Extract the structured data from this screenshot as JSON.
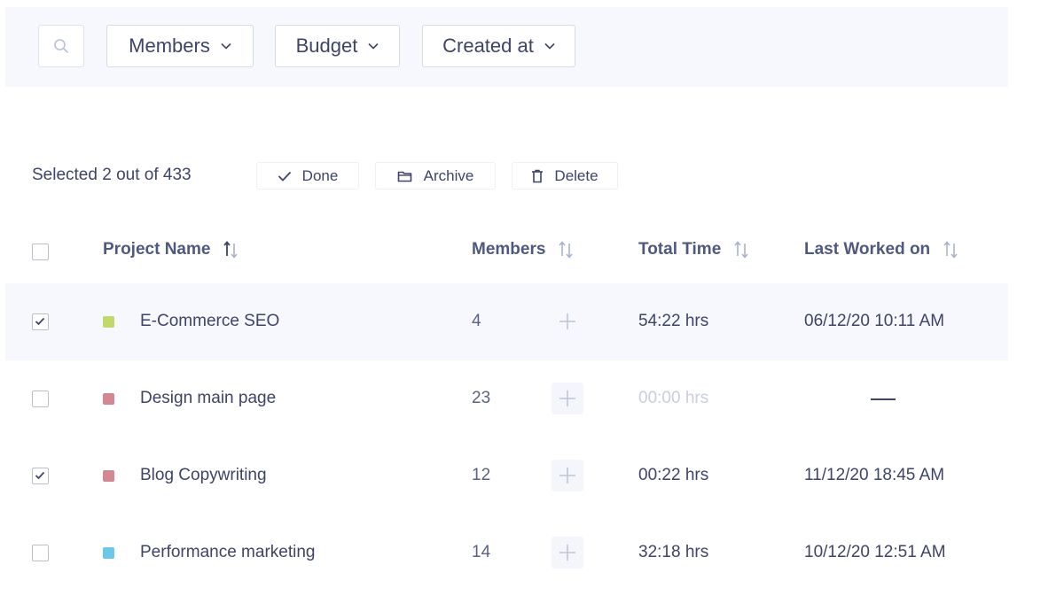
{
  "filters": {
    "search_icon": "search-icon",
    "buttons": [
      {
        "label": "Members"
      },
      {
        "label": "Budget"
      },
      {
        "label": "Created at"
      }
    ]
  },
  "toolbar": {
    "selected_text": "Selected 2 out of 433",
    "actions": [
      {
        "label": "Done",
        "icon": "check-icon"
      },
      {
        "label": "Archive",
        "icon": "folder-icon"
      },
      {
        "label": "Delete",
        "icon": "trash-icon"
      }
    ]
  },
  "table": {
    "columns": [
      "Project Name",
      "Members",
      "Total Time",
      "Last Worked on"
    ],
    "rows": [
      {
        "checked": true,
        "color": "#c2d86a",
        "name": "E-Commerce SEO",
        "members": "4",
        "time": "54:22 hrs",
        "last": "06/12/20  10:11 AM"
      },
      {
        "checked": false,
        "color": "#d28792",
        "name": "Design main page",
        "members": "23",
        "time": "00:00 hrs",
        "last": ""
      },
      {
        "checked": true,
        "color": "#d28792",
        "name": "Blog Copywriting",
        "members": "12",
        "time": "00:22 hrs",
        "last": "11/12/20  18:45 AM"
      },
      {
        "checked": false,
        "color": "#6cc7e8",
        "name": "Performance marketing",
        "members": "14",
        "time": "32:18 hrs",
        "last": "10/12/20  12:51 AM"
      }
    ]
  },
  "colors": {
    "text": "#3d4468",
    "header_text": "#4f5880",
    "panel_bg": "#f6f8fd",
    "muted": "#c8cee0"
  }
}
